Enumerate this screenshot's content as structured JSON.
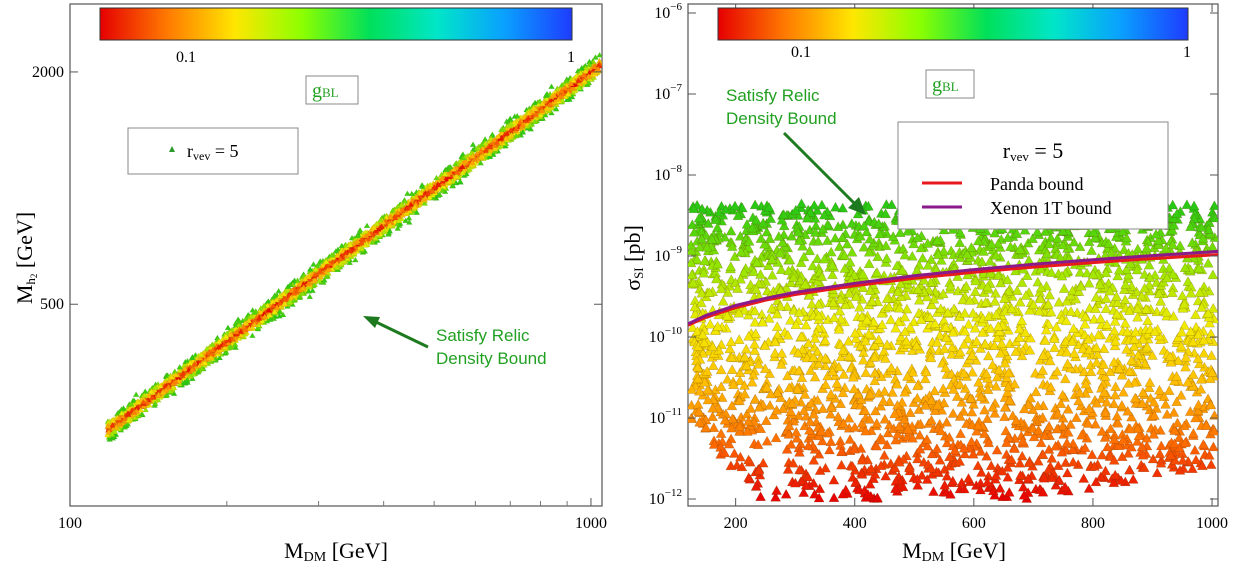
{
  "chart_data": [
    {
      "type": "scatter",
      "panel": "left",
      "xlabel": "M",
      "xlabel_sub": "DM",
      "xlabel_unit": " [GeV]",
      "ylabel": "M",
      "ylabel_sub": "h",
      "ylabel_sub2": "2",
      "ylabel_unit": " [GeV]",
      "x_scale": "log",
      "y_scale": "log",
      "xlim": [
        100,
        1050
      ],
      "ylim": [
        150,
        3000
      ],
      "x_ticks": [
        {
          "v": 100,
          "label": "100"
        },
        {
          "v": 1000,
          "label": "1000"
        }
      ],
      "y_ticks": [
        {
          "v": 500,
          "label": "500"
        },
        {
          "v": 2000,
          "label": "2000"
        }
      ],
      "colorbar": {
        "label": "g",
        "label_sub": "BL",
        "min_label": "0.1",
        "max_label": "1",
        "colors": [
          "#e60000",
          "#ff7a00",
          "#ffe600",
          "#8cff00",
          "#00e05a",
          "#00e6c8",
          "#0aa0ff",
          "#1e3cff"
        ]
      },
      "legend": {
        "marker_color": "#2a9a2a",
        "label": "r",
        "label_sub": "vev",
        "label_tail": " = 5"
      },
      "annotation": {
        "line1": "Satisfy Relic",
        "line2": "Density Bound",
        "color": "#22a022"
      },
      "band": {
        "relation": "M_h2 ≈ 2·M_DM",
        "x_range": [
          118,
          1040
        ],
        "color_order": "red core, orange/yellow, green edges"
      }
    },
    {
      "type": "scatter",
      "panel": "right",
      "xlabel": "M",
      "xlabel_sub": "DM",
      "xlabel_unit": " [GeV]",
      "ylabel": "σ",
      "ylabel_sub": "SI",
      "ylabel_unit": " [pb]",
      "x_scale": "linear",
      "y_scale": "log",
      "xlim": [
        120,
        1010
      ],
      "ylim": [
        1e-12,
        1e-06
      ],
      "x_ticks": [
        {
          "v": 200,
          "label": "200"
        },
        {
          "v": 400,
          "label": "400"
        },
        {
          "v": 600,
          "label": "600"
        },
        {
          "v": 800,
          "label": "800"
        },
        {
          "v": 1000,
          "label": "1000"
        }
      ],
      "y_ticks": [
        {
          "exp": -12
        },
        {
          "exp": -11
        },
        {
          "exp": -10
        },
        {
          "exp": -9
        },
        {
          "exp": -8
        },
        {
          "exp": -7
        },
        {
          "exp": -6
        }
      ],
      "y_tick_base": "10",
      "colorbar": {
        "label": "g",
        "label_sub": "BL",
        "min_label": "0.1",
        "max_label": "1",
        "colors": [
          "#e60000",
          "#ff7a00",
          "#ffe600",
          "#8cff00",
          "#00e05a",
          "#00e6c8",
          "#0aa0ff",
          "#1e3cff"
        ]
      },
      "legend": {
        "title": "r",
        "title_sub": "vev",
        "title_tail": " = 5",
        "entries": [
          {
            "label": "Panda bound",
            "color": "#e8191e"
          },
          {
            "label": "Xenon 1T bound",
            "color": "#8a1a8a"
          }
        ]
      },
      "annotation": {
        "line1": "Satisfy Relic",
        "line2": "Density Bound",
        "color": "#22a022"
      },
      "series": [
        {
          "name": "Panda bound",
          "color": "#e8191e",
          "x": [
            120,
            150,
            200,
            250,
            300,
            400,
            500,
            600,
            700,
            800,
            900,
            1010
          ],
          "y": [
            1.4e-10,
            1.75e-10,
            2.3e-10,
            2.85e-10,
            3.35e-10,
            4.3e-10,
            5.3e-10,
            6.3e-10,
            7.3e-10,
            8.3e-10,
            9.3e-10,
            1.04e-09
          ]
        },
        {
          "name": "Xenon 1T bound",
          "color": "#8a1a8a",
          "x": [
            120,
            150,
            200,
            250,
            300,
            400,
            500,
            600,
            700,
            800,
            900,
            1010
          ],
          "y": [
            1.45e-10,
            1.85e-10,
            2.45e-10,
            3e-10,
            3.55e-10,
            4.6e-10,
            5.7e-10,
            6.8e-10,
            7.9e-10,
            9e-10,
            1.01e-09,
            1.14e-09
          ]
        }
      ],
      "scatter_region": {
        "x_range": [
          125,
          1005
        ],
        "y_range": [
          1e-12,
          4.5e-09
        ],
        "color_trend": "red at low σ, orange/yellow mid, green near 1e-9 to 4e-9"
      }
    }
  ]
}
